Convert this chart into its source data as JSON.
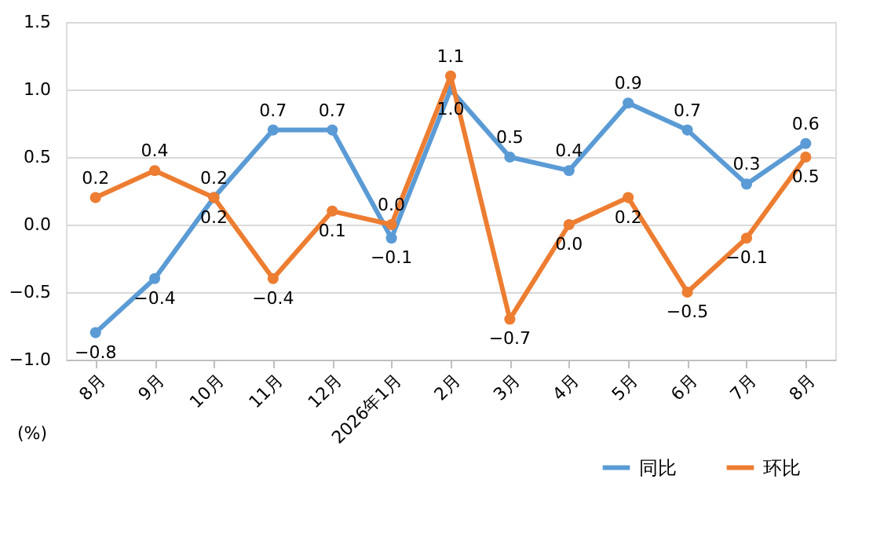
{
  "chart_data": {
    "type": "line",
    "ylabel": "(%)",
    "categories": [
      "8月",
      "9月",
      "10月",
      "11月",
      "12月",
      "2026年1月",
      "2月",
      "3月",
      "4月",
      "5月",
      "6月",
      "7月",
      "8月"
    ],
    "series": [
      {
        "name": "同比",
        "color": "#5b9bd5",
        "values": [
          -0.8,
          -0.4,
          0.2,
          0.7,
          0.7,
          -0.1,
          1.0,
          0.5,
          0.4,
          0.9,
          0.7,
          0.3,
          0.6
        ],
        "value_labels": [
          "−0.8",
          "−0.4",
          "0.2",
          "0.7",
          "0.7",
          "−0.1",
          "1.0",
          "0.5",
          "0.4",
          "0.9",
          "0.7",
          "0.3",
          "0.6"
        ]
      },
      {
        "name": "环比",
        "color": "#ed7d31",
        "values": [
          0.2,
          0.4,
          0.2,
          -0.4,
          0.1,
          0.0,
          1.1,
          -0.7,
          0.0,
          0.2,
          -0.5,
          -0.1,
          0.5
        ],
        "value_labels": [
          "0.2",
          "0.4",
          "0.2",
          "−0.4",
          "0.1",
          "0.0",
          "1.1",
          "−0.7",
          "0.0",
          "0.2",
          "−0.5",
          "−0.1",
          "0.5"
        ]
      }
    ],
    "ylim": [
      -1.0,
      1.5
    ],
    "yticks": [
      {
        "value": -1.0,
        "label": "−1.0"
      },
      {
        "value": -0.5,
        "label": "−0.5"
      },
      {
        "value": 0.0,
        "label": "0.0"
      },
      {
        "value": 0.5,
        "label": "0.5"
      },
      {
        "value": 1.0,
        "label": "1.0"
      },
      {
        "value": 1.5,
        "label": "1.5"
      }
    ],
    "grid": "y",
    "legend": "bottom right",
    "marker": "circle",
    "line_style": "solid",
    "data_labels": true
  }
}
